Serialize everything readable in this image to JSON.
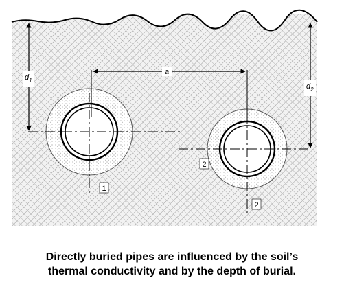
{
  "diagram": {
    "labels": {
      "spacing": "a",
      "depth_left_main": "d",
      "depth_left_sub": "1",
      "depth_right_main": "d",
      "depth_right_sub": "2",
      "pipe_left_marker": "1",
      "pipe_right_marker_side": "2",
      "pipe_right_marker_bottom": "2"
    },
    "colors": {
      "soil_background": "#f2f2f2",
      "soil_hatch": "#9a9a9a",
      "bedding": "#ffffff",
      "bedding_dots": "#6a6a6a",
      "pipe_stroke": "#000000"
    }
  },
  "caption": {
    "line1": "Directly buried pipes are influenced by the soil’s",
    "line2": "thermal conductivity and by the depth of burial."
  }
}
